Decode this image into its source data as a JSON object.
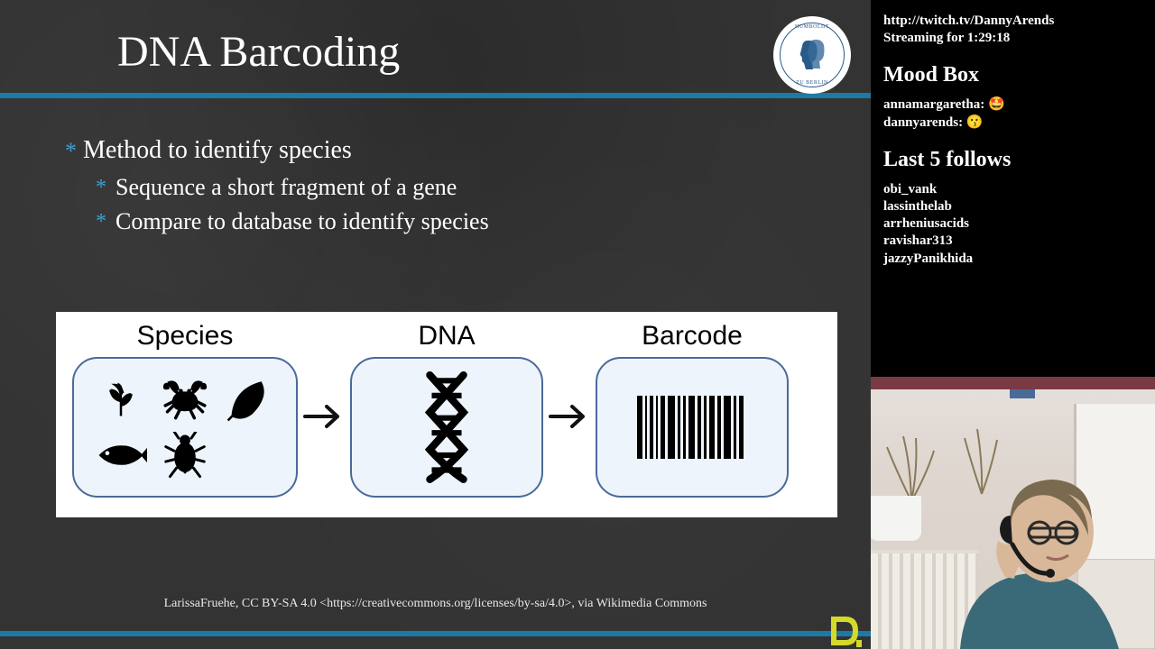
{
  "slide": {
    "title": "DNA Barcoding",
    "accent_color": "#1b7ba6",
    "bg_color": "#333333",
    "logo_name": "Humboldt-Universität zu Berlin",
    "bullets": {
      "l1": "Method to identify species",
      "l2a": "Sequence a short fragment of a gene",
      "l2b": "Compare to database to identify species"
    },
    "diagram": {
      "labels": {
        "species": "Species",
        "dna": "DNA",
        "barcode": "Barcode"
      },
      "box_border": "#4a6a9a",
      "box_fill": "#eef4fb",
      "arrow_color": "#111111",
      "barcode_widths": [
        6,
        2,
        4,
        2,
        5,
        8,
        3,
        3,
        7,
        4,
        3,
        6,
        4,
        8,
        3,
        5
      ],
      "barcode_gap": 3
    },
    "attribution": "LarissaFruehe, CC BY-SA 4.0 <https://creativecommons.org/licenses/by-sa/4.0>, via Wikimedia Commons",
    "footer_logo": "D"
  },
  "overlay": {
    "url": "http://twitch.tv/DannyArends",
    "streaming_label": "Streaming for",
    "streaming_time": "1:29:18",
    "mood_head": "Mood Box",
    "mood": [
      {
        "user": "annamargaretha",
        "emoji": "🤩"
      },
      {
        "user": "dannyarends",
        "emoji": "😗"
      }
    ],
    "follows_head": "Last 5 follows",
    "follows": [
      "obi_vank",
      "lassinthelab",
      "arrheniusacids",
      "ravishar313",
      "jazzyPanikhida"
    ]
  }
}
